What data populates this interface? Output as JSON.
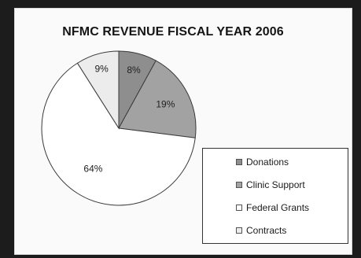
{
  "chart_data": {
    "type": "pie",
    "title": "NFMC REVENUE FISCAL YEAR 2006",
    "slices": [
      {
        "label": "Donations",
        "value": 8,
        "display": "8%",
        "color": "#8e8e8e"
      },
      {
        "label": "Clinic Support",
        "value": 19,
        "display": "19%",
        "color": "#a2a2a2"
      },
      {
        "label": "Federal Grants",
        "value": 64,
        "display": "64%",
        "color": "#ffffff"
      },
      {
        "label": "Contracts",
        "value": 9,
        "display": "9%",
        "color": "#ececec"
      }
    ],
    "legend_placement": "bottom-right"
  }
}
